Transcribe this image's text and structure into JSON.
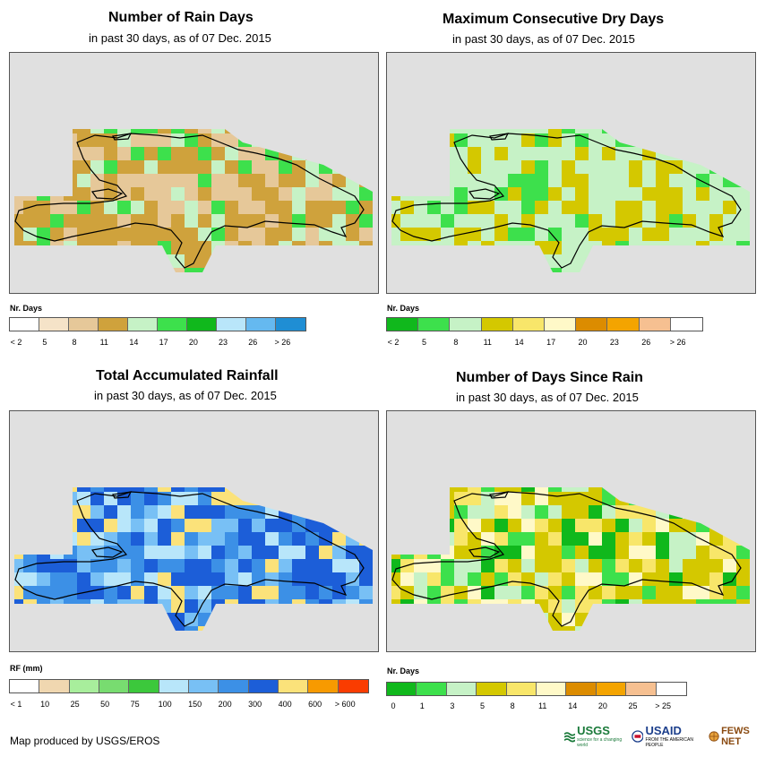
{
  "panels": [
    {
      "title": "Number of Rain Days",
      "subtitle": "in past 30 days, as of 07 Dec. 2015",
      "unit": "Nr. Days",
      "legend": {
        "colors": [
          "#ffffff",
          "#f5e3c8",
          "#e6c899",
          "#cfa23c",
          "#c6f2c6",
          "#3de04c",
          "#10b81c",
          "#b9e6fa",
          "#65b9f0",
          "#1f8ed4"
        ],
        "ticks": [
          "< 2",
          "5",
          "8",
          "11",
          "14",
          "17",
          "20",
          "23",
          "26",
          "> 26"
        ]
      }
    },
    {
      "title": "Maximum Consecutive Dry Days",
      "subtitle": "in past 30 days, as of 07 Dec. 2015",
      "unit": "Nr. Days",
      "legend": {
        "colors": [
          "#10b81c",
          "#3de04c",
          "#c6f2c6",
          "#d4c800",
          "#f8e66a",
          "#fff9c8",
          "#dc8c00",
          "#f4a400",
          "#f6c091",
          "#ffffff"
        ],
        "ticks": [
          "< 2",
          "5",
          "8",
          "11",
          "14",
          "17",
          "20",
          "23",
          "26",
          "> 26"
        ]
      }
    },
    {
      "title": "Total Accumulated Rainfall",
      "subtitle": "in past 30 days, as of 07 Dec. 2015",
      "unit": "RF (mm)",
      "legend": {
        "colors": [
          "#ffffff",
          "#f0d7b0",
          "#a8ee9c",
          "#78dc70",
          "#3cc83c",
          "#b8e6fa",
          "#78c0f5",
          "#3c90e6",
          "#1c5ed8",
          "#fbe27a",
          "#f79a00",
          "#fa3c00"
        ],
        "ticks": [
          "< 1",
          "10",
          "25",
          "50",
          "75",
          "100",
          "150",
          "200",
          "300",
          "400",
          "600",
          "> 600"
        ]
      }
    },
    {
      "title": "Number of Days Since Rain",
      "subtitle": "in past 30 days, as of 07 Dec. 2015",
      "unit": "Nr. Days",
      "legend": {
        "colors": [
          "#10b81c",
          "#3de04c",
          "#c6f2c6",
          "#d4c800",
          "#f8e66a",
          "#fff9c8",
          "#dc8c00",
          "#f4a400",
          "#f6c091",
          "#ffffff"
        ],
        "ticks": [
          "0",
          "1",
          "3",
          "5",
          "8",
          "11",
          "14",
          "20",
          "25",
          "> 25"
        ]
      }
    }
  ],
  "footer": "Map produced by USGS/EROS",
  "logos": {
    "usgs": "USGS",
    "usgs_tag": "science for a changing world",
    "usaid": "USAID",
    "usaid_tag": "FROM THE AMERICAN PEOPLE",
    "fews": "FEWS NET"
  }
}
